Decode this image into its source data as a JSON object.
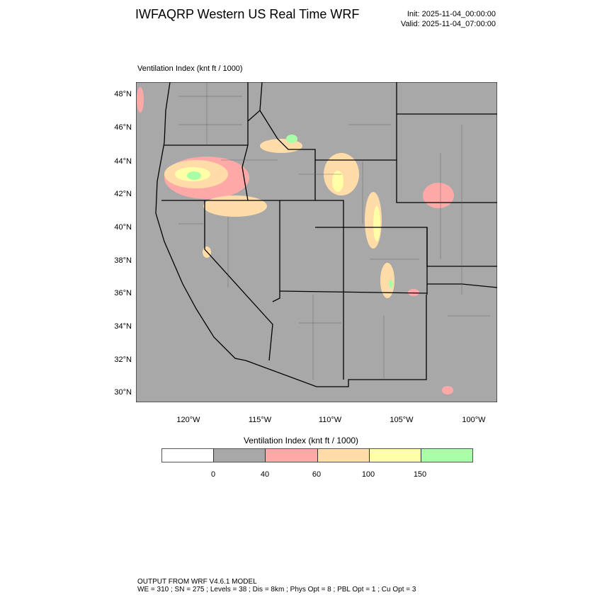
{
  "header": {
    "title": "IWFAQRP Western US Real Time WRF",
    "init": "Init: 2025-11-04_00:00:00",
    "valid": "Valid: 2025-11-04_07:00:00"
  },
  "map": {
    "subtitle": "Ventilation Index   (knt ft / 1000)",
    "background_color": "#a8a8a8",
    "lat_labels": [
      "48°N",
      "46°N",
      "44°N",
      "42°N",
      "40°N",
      "38°N",
      "36°N",
      "34°N",
      "32°N",
      "30°N"
    ],
    "lon_labels": [
      "120°W",
      "115°W",
      "110°W",
      "105°W",
      "100°W"
    ]
  },
  "colorbar": {
    "title": "Ventilation Index  (knt ft / 1000)",
    "colors": [
      "#ffffff",
      "#a8a8a8",
      "#ffa8a8",
      "#ffdca8",
      "#ffffa8",
      "#a8ffa8"
    ],
    "labels": [
      "0",
      "40",
      "60",
      "100",
      "150"
    ]
  },
  "footer": {
    "line1": "OUTPUT FROM WRF V4.6.1 MODEL",
    "line2": "WE = 310 ; SN = 275 ; Levels = 38 ; Dis = 8km ; Phys Opt = 8 ; PBL Opt = 1 ; Cu Opt = 3"
  }
}
